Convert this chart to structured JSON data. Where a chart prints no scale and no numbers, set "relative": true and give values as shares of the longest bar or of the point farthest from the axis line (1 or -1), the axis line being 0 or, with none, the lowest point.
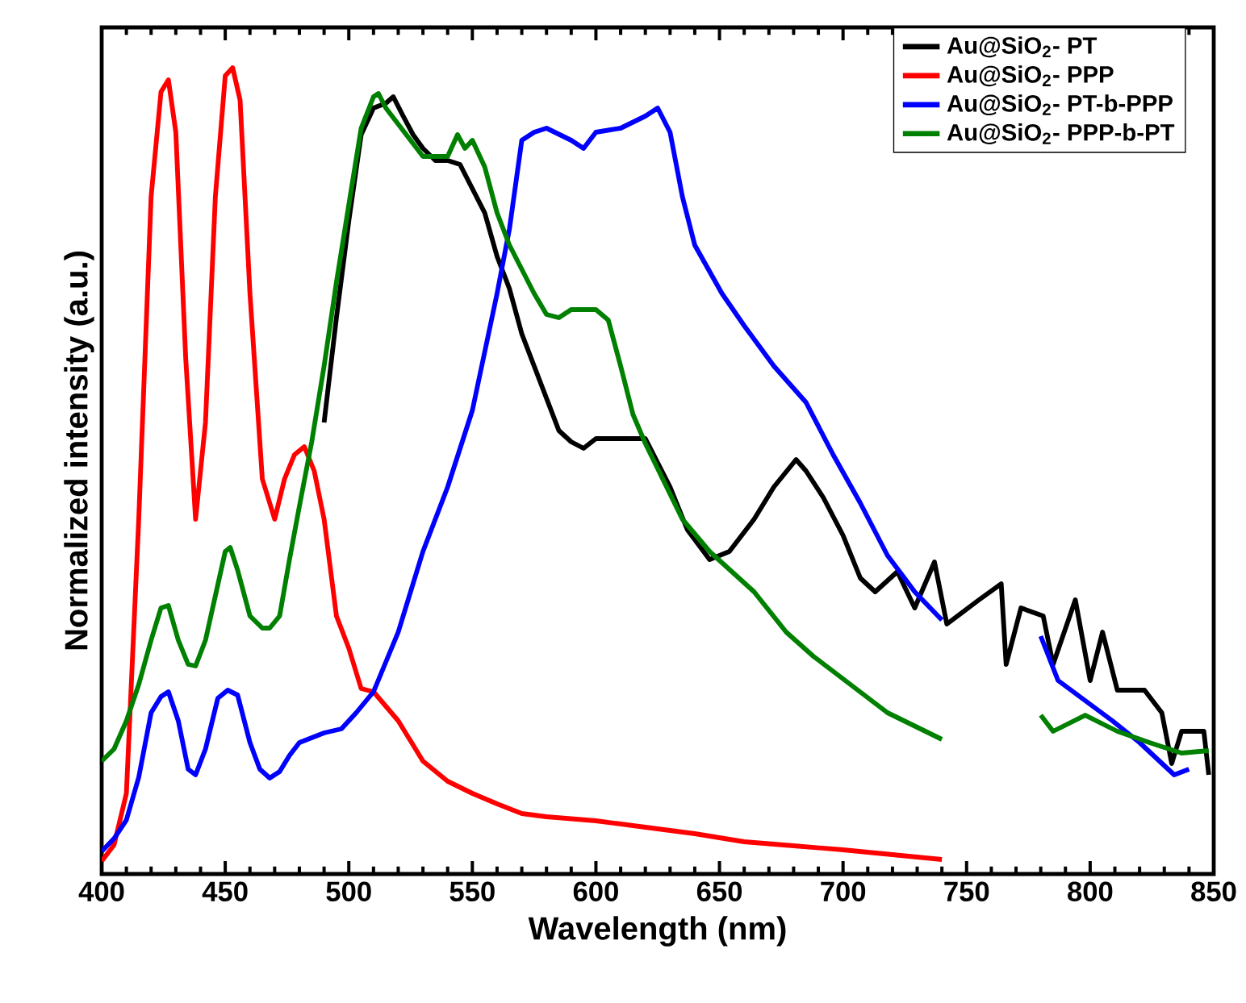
{
  "chart_data": {
    "type": "line",
    "xlabel": "Wavelength (nm)",
    "ylabel": "Normalized intensity (a.u.)",
    "relative": true,
    "xlim": [
      400,
      850
    ],
    "xticks": [
      400,
      450,
      500,
      550,
      600,
      650,
      700,
      750,
      800,
      850
    ],
    "legend": "top right",
    "line_style": "solid",
    "series": [
      {
        "name": "Au@SiO$_{2}$- PT",
        "color": "#000000",
        "x": [
          490,
          495,
          500,
          505,
          510,
          515,
          518,
          522,
          526,
          530,
          535,
          540,
          545,
          550,
          555,
          560,
          565,
          570,
          575,
          580,
          585,
          590,
          595,
          600,
          610,
          620,
          630,
          637,
          646,
          654,
          664,
          672,
          681,
          685,
          692,
          700,
          707,
          713,
          722,
          729,
          737,
          742,
          755,
          764,
          766,
          772,
          781,
          785,
          794,
          800,
          805,
          811,
          822,
          829,
          833,
          837,
          846,
          848
        ],
        "values": [
          0.56,
          0.69,
          0.81,
          0.917,
          0.95,
          0.956,
          0.964,
          0.94,
          0.917,
          0.9,
          0.885,
          0.885,
          0.88,
          0.85,
          0.82,
          0.766,
          0.726,
          0.67,
          0.63,
          0.59,
          0.55,
          0.536,
          0.528,
          0.54,
          0.54,
          0.54,
          0.48,
          0.427,
          0.39,
          0.4,
          0.44,
          0.48,
          0.514,
          0.5,
          0.467,
          0.42,
          0.367,
          0.35,
          0.375,
          0.33,
          0.387,
          0.31,
          0.34,
          0.36,
          0.26,
          0.33,
          0.32,
          0.26,
          0.34,
          0.24,
          0.3,
          0.228,
          0.228,
          0.2,
          0.137,
          0.177,
          0.177,
          0.123
        ]
      },
      {
        "name": "Au@SiO$_{2}$- PPP",
        "color": "#ff0000",
        "x": [
          400,
          405,
          410,
          415,
          420,
          424,
          427,
          430,
          434,
          438,
          442,
          446,
          450,
          453,
          456,
          460,
          465,
          470,
          474,
          478,
          482,
          486,
          490,
          495,
          500,
          505,
          510,
          520,
          530,
          540,
          550,
          560,
          570,
          580,
          600,
          620,
          640,
          660,
          680,
          700,
          720,
          740
        ],
        "values": [
          0.016,
          0.036,
          0.1,
          0.44,
          0.84,
          0.97,
          0.985,
          0.92,
          0.64,
          0.44,
          0.56,
          0.84,
          0.99,
          1.0,
          0.96,
          0.72,
          0.49,
          0.44,
          0.49,
          0.52,
          0.53,
          0.5,
          0.44,
          0.32,
          0.28,
          0.23,
          0.226,
          0.19,
          0.14,
          0.115,
          0.1,
          0.087,
          0.075,
          0.071,
          0.066,
          0.058,
          0.05,
          0.04,
          0.035,
          0.03,
          0.024,
          0.018
        ]
      },
      {
        "name": "Au@SiO$_{2}$- PT-b-PPP",
        "color": "#0000ff",
        "x": [
          400,
          405,
          410,
          415,
          420,
          424,
          427,
          431,
          435,
          438,
          442,
          447,
          451,
          455,
          460,
          464,
          468,
          472,
          476,
          480,
          490,
          497,
          503,
          510,
          520,
          530,
          540,
          550,
          560,
          565,
          570,
          575,
          580,
          590,
          595,
          600,
          610,
          620,
          625,
          630,
          635,
          640,
          651,
          660,
          672,
          685,
          696,
          707,
          718,
          729,
          740,
          760,
          780,
          787,
          798,
          809,
          820,
          834,
          840
        ],
        "values": [
          0.028,
          0.044,
          0.067,
          0.12,
          0.2,
          0.22,
          0.226,
          0.19,
          0.13,
          0.123,
          0.155,
          0.218,
          0.228,
          0.222,
          0.163,
          0.13,
          0.119,
          0.127,
          0.147,
          0.163,
          0.175,
          0.18,
          0.2,
          0.226,
          0.3,
          0.4,
          0.48,
          0.575,
          0.72,
          0.8,
          0.91,
          0.92,
          0.925,
          0.91,
          0.9,
          0.92,
          0.925,
          0.94,
          0.95,
          0.92,
          0.84,
          0.78,
          0.72,
          0.68,
          0.63,
          0.585,
          0.52,
          0.46,
          0.395,
          0.35,
          0.315,
          null,
          0.295,
          0.24,
          0.215,
          0.19,
          0.163,
          0.123,
          0.13
        ]
      },
      {
        "name": "Au@SiO$_{2}$- PPP-b-PT",
        "color": "#008000",
        "x": [
          400,
          405,
          410,
          415,
          420,
          424,
          427,
          431,
          435,
          438,
          442,
          446,
          450,
          452,
          455,
          460,
          465,
          468,
          472,
          476,
          480,
          485,
          490,
          495,
          500,
          505,
          510,
          512,
          515,
          520,
          525,
          530,
          540,
          544,
          547,
          550,
          555,
          560,
          565,
          570,
          575,
          580,
          585,
          590,
          600,
          605,
          610,
          615,
          620,
          635,
          646,
          664,
          677,
          688,
          703,
          718,
          740,
          760,
          780,
          785,
          798,
          811,
          824,
          837,
          848
        ],
        "values": [
          0.14,
          0.155,
          0.19,
          0.235,
          0.29,
          0.33,
          0.333,
          0.29,
          0.26,
          0.258,
          0.29,
          0.345,
          0.4,
          0.405,
          0.377,
          0.32,
          0.305,
          0.305,
          0.32,
          0.39,
          0.456,
          0.536,
          0.63,
          0.734,
          0.83,
          0.925,
          0.964,
          0.968,
          0.95,
          0.93,
          0.91,
          0.89,
          0.89,
          0.917,
          0.9,
          0.91,
          0.877,
          0.82,
          0.78,
          0.75,
          0.72,
          0.694,
          0.69,
          0.7,
          0.7,
          0.687,
          0.63,
          0.57,
          0.534,
          0.44,
          0.4,
          0.35,
          0.3,
          0.27,
          0.235,
          0.2,
          0.167,
          null,
          0.197,
          0.177,
          0.197,
          0.177,
          0.163,
          0.15,
          0.153
        ]
      }
    ]
  }
}
